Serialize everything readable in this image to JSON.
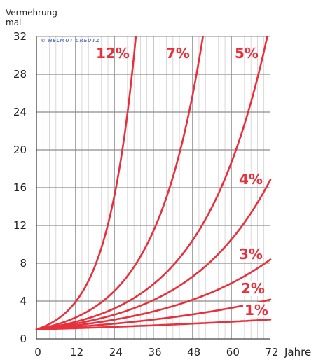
{
  "chart_data": {
    "type": "line",
    "ylabel_line1": "Vermehrung",
    "ylabel_line2": "mal",
    "xlabel": "Jahre",
    "credit": "© HELMUT CREUTZ",
    "xlim": [
      0,
      72
    ],
    "ylim": [
      0,
      32
    ],
    "x_ticks": [
      0,
      12,
      24,
      36,
      48,
      60,
      72
    ],
    "y_ticks": [
      0,
      4,
      8,
      12,
      16,
      20,
      24,
      28,
      32
    ],
    "grid": "vertical lines every 2 years, horizontal lines every 4",
    "curve_color": "#e8303c",
    "series": [
      {
        "name": "12%",
        "rate": 0.12,
        "values": [
          [
            0,
            1
          ],
          [
            6,
            1.97
          ],
          [
            12,
            3.9
          ],
          [
            18,
            7.69
          ],
          [
            24,
            15.18
          ],
          [
            30,
            29.96
          ],
          [
            30.6,
            32
          ]
        ]
      },
      {
        "name": "7%",
        "rate": 0.07,
        "values": [
          [
            0,
            1
          ],
          [
            12,
            2.25
          ],
          [
            24,
            5.07
          ],
          [
            36,
            11.42
          ],
          [
            42,
            17.15
          ],
          [
            48,
            25.73
          ],
          [
            51.2,
            32
          ]
        ]
      },
      {
        "name": "5%",
        "rate": 0.05,
        "values": [
          [
            0,
            1
          ],
          [
            12,
            1.8
          ],
          [
            24,
            3.23
          ],
          [
            36,
            5.79
          ],
          [
            48,
            10.4
          ],
          [
            60,
            18.68
          ],
          [
            72,
            33.54
          ]
        ]
      },
      {
        "name": "4%",
        "rate": 0.04,
        "values": [
          [
            0,
            1
          ],
          [
            12,
            1.6
          ],
          [
            24,
            2.56
          ],
          [
            36,
            4.1
          ],
          [
            48,
            6.57
          ],
          [
            60,
            10.52
          ],
          [
            72,
            16.84
          ]
        ]
      },
      {
        "name": "3%",
        "rate": 0.03,
        "values": [
          [
            0,
            1
          ],
          [
            12,
            1.43
          ],
          [
            24,
            2.03
          ],
          [
            36,
            2.9
          ],
          [
            48,
            4.13
          ],
          [
            60,
            5.89
          ],
          [
            72,
            8.39
          ]
        ]
      },
      {
        "name": "2%",
        "rate": 0.02,
        "values": [
          [
            0,
            1
          ],
          [
            12,
            1.27
          ],
          [
            24,
            1.61
          ],
          [
            36,
            2.04
          ],
          [
            48,
            2.59
          ],
          [
            60,
            3.28
          ],
          [
            72,
            4.16
          ]
        ]
      },
      {
        "name": "1%",
        "rate": 0.01,
        "values": [
          [
            0,
            1
          ],
          [
            12,
            1.13
          ],
          [
            24,
            1.27
          ],
          [
            36,
            1.43
          ],
          [
            48,
            1.61
          ],
          [
            60,
            1.82
          ],
          [
            72,
            2.05
          ]
        ]
      }
    ]
  }
}
